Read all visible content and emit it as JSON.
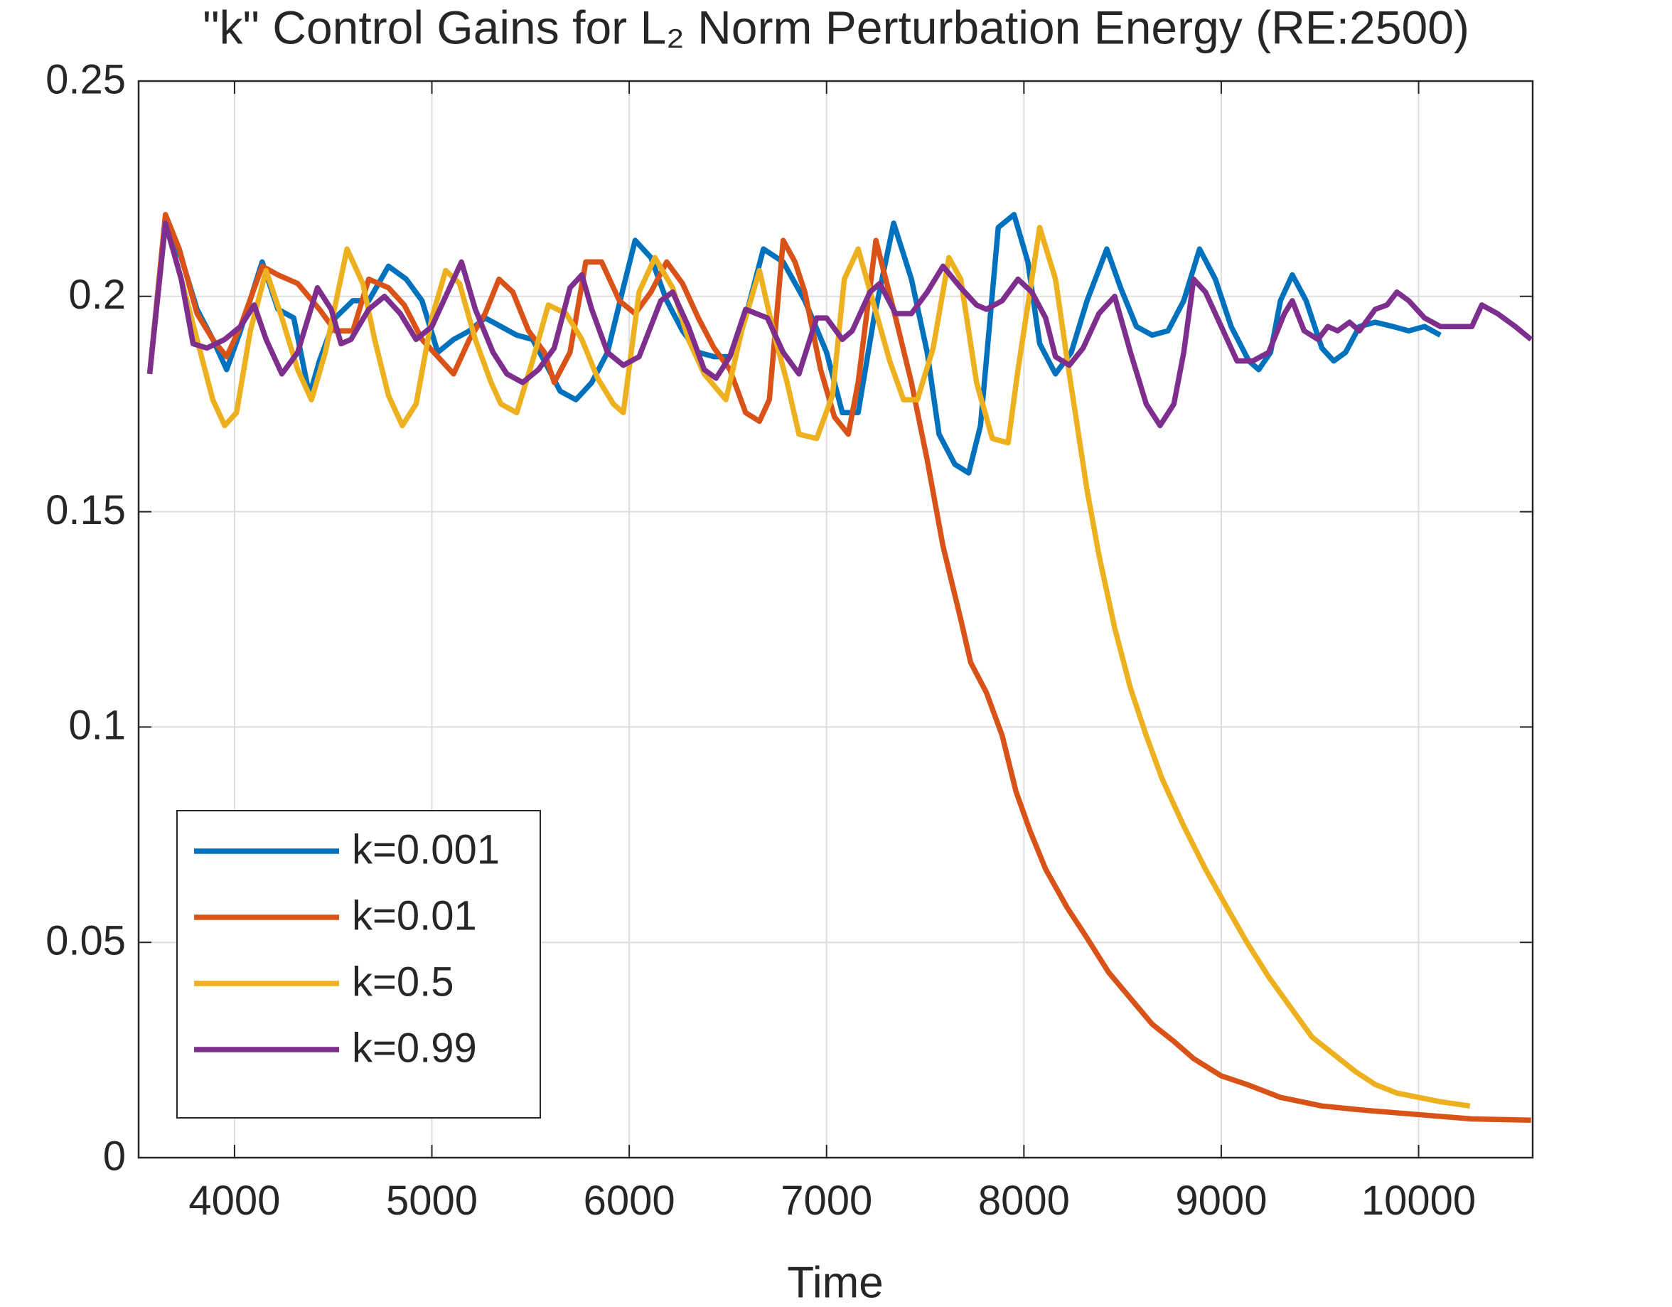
{
  "chart_data": {
    "type": "line",
    "title": "\"k\" Control Gains for L₂ Norm Perturbation Energy (RE:2500)",
    "x_label": "Time",
    "xlim": [
      3514,
      10578
    ],
    "ylim": [
      0,
      0.25
    ],
    "xticks": [
      4000,
      5000,
      6000,
      7000,
      8000,
      9000,
      10000
    ],
    "yticks": [
      0,
      0.05,
      0.1,
      0.15,
      0.2,
      0.25
    ],
    "grid": true,
    "legend_position": "lower left",
    "series": [
      {
        "name": "k=0.001",
        "color": "#0072BD",
        "x": [
          3570,
          3650,
          3730,
          3810,
          3890,
          3960,
          4030,
          4140,
          4220,
          4300,
          4380,
          4430,
          4510,
          4600,
          4680,
          4780,
          4870,
          4950,
          5030,
          5110,
          5190,
          5270,
          5350,
          5430,
          5510,
          5570,
          5650,
          5730,
          5810,
          5890,
          5970,
          6030,
          6110,
          6190,
          6270,
          6350,
          6430,
          6510,
          6600,
          6680,
          6780,
          6890,
          7000,
          7080,
          7160,
          7240,
          7340,
          7430,
          7510,
          7570,
          7650,
          7720,
          7780,
          7870,
          7950,
          8020,
          8080,
          8160,
          8240,
          8320,
          8420,
          8490,
          8570,
          8650,
          8730,
          8810,
          8890,
          8970,
          9050,
          9140,
          9190,
          9250,
          9300,
          9360,
          9430,
          9510,
          9570,
          9630,
          9700,
          9780,
          9870,
          9950,
          10030,
          10110
        ],
        "values": [
          0.182,
          0.218,
          0.209,
          0.197,
          0.19,
          0.183,
          0.192,
          0.208,
          0.197,
          0.195,
          0.177,
          0.185,
          0.195,
          0.199,
          0.199,
          0.207,
          0.204,
          0.199,
          0.187,
          0.19,
          0.192,
          0.195,
          0.193,
          0.191,
          0.19,
          0.185,
          0.178,
          0.176,
          0.18,
          0.187,
          0.202,
          0.213,
          0.209,
          0.199,
          0.192,
          0.187,
          0.186,
          0.186,
          0.197,
          0.211,
          0.208,
          0.199,
          0.187,
          0.173,
          0.173,
          0.195,
          0.217,
          0.204,
          0.187,
          0.168,
          0.161,
          0.159,
          0.17,
          0.216,
          0.219,
          0.208,
          0.189,
          0.182,
          0.187,
          0.199,
          0.211,
          0.202,
          0.193,
          0.191,
          0.192,
          0.199,
          0.211,
          0.204,
          0.193,
          0.185,
          0.183,
          0.187,
          0.199,
          0.205,
          0.199,
          0.188,
          0.185,
          0.187,
          0.193,
          0.194,
          0.193,
          0.192,
          0.193,
          0.191
        ]
      },
      {
        "name": "k=0.01",
        "color": "#D95319",
        "x": [
          3570,
          3650,
          3720,
          3810,
          3890,
          3960,
          4030,
          4140,
          4220,
          4320,
          4430,
          4510,
          4600,
          4680,
          4780,
          4860,
          4950,
          5030,
          5110,
          5190,
          5270,
          5340,
          5410,
          5490,
          5570,
          5620,
          5700,
          5780,
          5860,
          5950,
          6030,
          6110,
          6190,
          6270,
          6350,
          6430,
          6510,
          6590,
          6660,
          6710,
          6780,
          6840,
          6890,
          6970,
          7040,
          7110,
          7160,
          7250,
          7350,
          7430,
          7510,
          7590,
          7680,
          7730,
          7810,
          7890,
          7960,
          8030,
          8110,
          8220,
          8320,
          8430,
          8540,
          8650,
          8760,
          8860,
          9000,
          9130,
          9300,
          9510,
          9730,
          10000,
          10270,
          10570
        ],
        "values": [
          0.182,
          0.219,
          0.211,
          0.196,
          0.19,
          0.186,
          0.193,
          0.207,
          0.205,
          0.203,
          0.197,
          0.192,
          0.192,
          0.204,
          0.202,
          0.198,
          0.19,
          0.186,
          0.182,
          0.19,
          0.196,
          0.204,
          0.201,
          0.192,
          0.187,
          0.18,
          0.187,
          0.208,
          0.208,
          0.199,
          0.196,
          0.201,
          0.208,
          0.203,
          0.195,
          0.188,
          0.183,
          0.173,
          0.171,
          0.176,
          0.213,
          0.208,
          0.201,
          0.183,
          0.172,
          0.168,
          0.18,
          0.213,
          0.195,
          0.18,
          0.162,
          0.142,
          0.125,
          0.115,
          0.108,
          0.098,
          0.085,
          0.076,
          0.067,
          0.058,
          0.051,
          0.043,
          0.037,
          0.031,
          0.027,
          0.023,
          0.019,
          0.017,
          0.014,
          0.012,
          0.011,
          0.01,
          0.009,
          0.0087
        ]
      },
      {
        "name": "k=0.5",
        "color": "#EDB120",
        "x": [
          3570,
          3650,
          3730,
          3810,
          3890,
          3950,
          4010,
          4080,
          4160,
          4240,
          4320,
          4390,
          4460,
          4570,
          4650,
          4710,
          4780,
          4850,
          4920,
          5000,
          5070,
          5140,
          5220,
          5300,
          5350,
          5430,
          5510,
          5590,
          5680,
          5760,
          5840,
          5920,
          5970,
          6050,
          6130,
          6220,
          6300,
          6380,
          6490,
          6570,
          6660,
          6730,
          6800,
          6860,
          6950,
          7030,
          7090,
          7160,
          7240,
          7320,
          7390,
          7460,
          7540,
          7620,
          7680,
          7760,
          7840,
          7920,
          7970,
          8080,
          8160,
          8220,
          8270,
          8320,
          8380,
          8460,
          8540,
          8620,
          8700,
          8810,
          8920,
          9030,
          9130,
          9240,
          9350,
          9460,
          9570,
          9680,
          9780,
          9890,
          10000,
          10110,
          10260
        ],
        "values": [
          0.182,
          0.217,
          0.204,
          0.19,
          0.176,
          0.17,
          0.173,
          0.192,
          0.206,
          0.195,
          0.183,
          0.176,
          0.187,
          0.211,
          0.203,
          0.19,
          0.177,
          0.17,
          0.175,
          0.195,
          0.206,
          0.203,
          0.19,
          0.18,
          0.175,
          0.173,
          0.185,
          0.198,
          0.196,
          0.19,
          0.181,
          0.175,
          0.173,
          0.201,
          0.209,
          0.202,
          0.19,
          0.182,
          0.176,
          0.192,
          0.206,
          0.192,
          0.18,
          0.168,
          0.167,
          0.177,
          0.204,
          0.211,
          0.198,
          0.185,
          0.176,
          0.176,
          0.188,
          0.209,
          0.204,
          0.18,
          0.167,
          0.166,
          0.183,
          0.216,
          0.204,
          0.185,
          0.17,
          0.155,
          0.14,
          0.123,
          0.109,
          0.098,
          0.088,
          0.077,
          0.067,
          0.058,
          0.05,
          0.042,
          0.035,
          0.028,
          0.024,
          0.02,
          0.017,
          0.015,
          0.014,
          0.013,
          0.012
        ]
      },
      {
        "name": "k=0.99",
        "color": "#7E2F8E",
        "x": [
          3570,
          3650,
          3730,
          3790,
          3860,
          3950,
          4030,
          4100,
          4160,
          4240,
          4320,
          4420,
          4490,
          4540,
          4590,
          4680,
          4760,
          4840,
          4920,
          5000,
          5080,
          5150,
          5220,
          5310,
          5380,
          5460,
          5540,
          5620,
          5700,
          5760,
          5810,
          5890,
          5970,
          6050,
          6160,
          6220,
          6300,
          6380,
          6440,
          6510,
          6590,
          6700,
          6780,
          6860,
          6950,
          7000,
          7080,
          7130,
          7220,
          7270,
          7350,
          7430,
          7510,
          7590,
          7680,
          7760,
          7810,
          7890,
          7970,
          8040,
          8110,
          8160,
          8230,
          8300,
          8380,
          8460,
          8540,
          8620,
          8690,
          8760,
          8810,
          8860,
          8920,
          9000,
          9080,
          9160,
          9240,
          9320,
          9360,
          9420,
          9490,
          9540,
          9590,
          9650,
          9700,
          9780,
          9840,
          9890,
          9950,
          10030,
          10110,
          10190,
          10270,
          10320,
          10400,
          10490,
          10570
        ],
        "values": [
          0.182,
          0.217,
          0.204,
          0.189,
          0.188,
          0.19,
          0.193,
          0.198,
          0.19,
          0.182,
          0.187,
          0.202,
          0.197,
          0.189,
          0.19,
          0.197,
          0.2,
          0.196,
          0.19,
          0.193,
          0.201,
          0.208,
          0.197,
          0.187,
          0.182,
          0.18,
          0.183,
          0.188,
          0.202,
          0.205,
          0.197,
          0.187,
          0.184,
          0.186,
          0.199,
          0.201,
          0.193,
          0.183,
          0.181,
          0.186,
          0.197,
          0.195,
          0.187,
          0.182,
          0.195,
          0.195,
          0.19,
          0.192,
          0.201,
          0.203,
          0.196,
          0.196,
          0.201,
          0.207,
          0.202,
          0.198,
          0.197,
          0.199,
          0.204,
          0.201,
          0.195,
          0.186,
          0.184,
          0.188,
          0.196,
          0.2,
          0.187,
          0.175,
          0.17,
          0.175,
          0.187,
          0.204,
          0.201,
          0.193,
          0.185,
          0.185,
          0.187,
          0.196,
          0.199,
          0.192,
          0.19,
          0.193,
          0.192,
          0.194,
          0.192,
          0.197,
          0.198,
          0.201,
          0.199,
          0.195,
          0.193,
          0.193,
          0.193,
          0.198,
          0.196,
          0.193,
          0.19
        ]
      }
    ]
  }
}
